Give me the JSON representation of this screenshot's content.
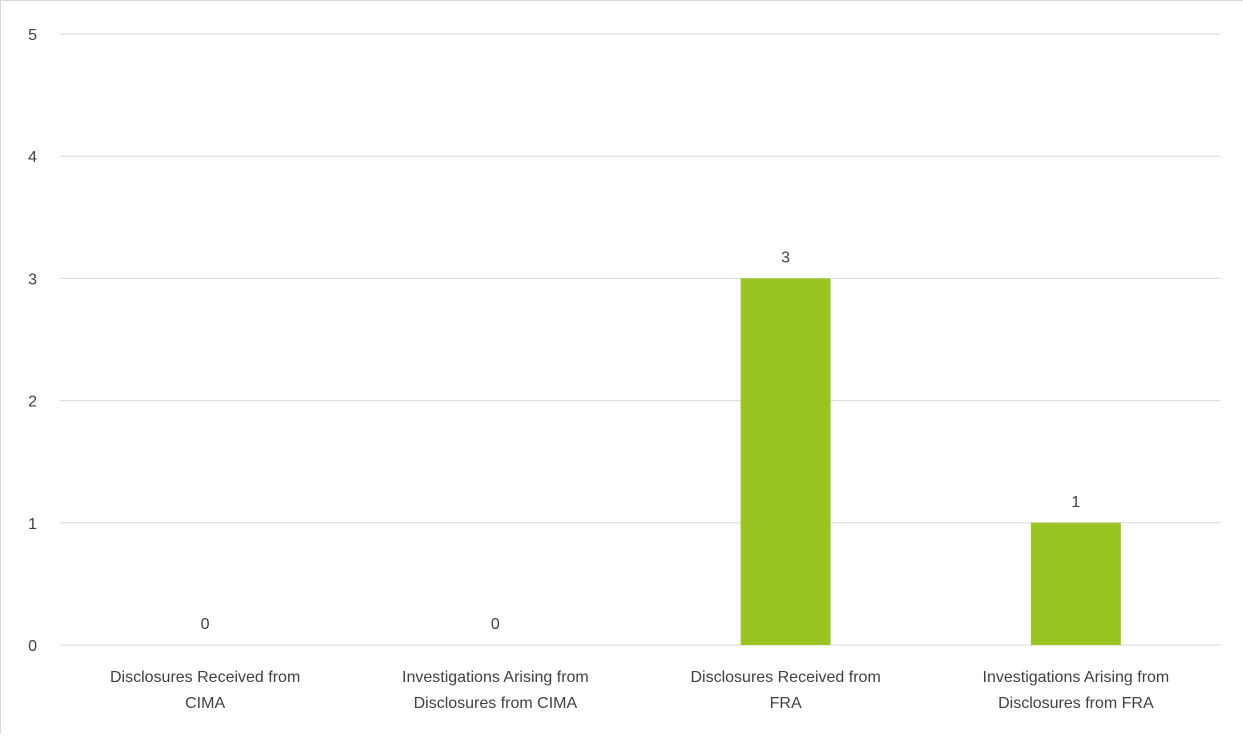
{
  "chart_data": {
    "type": "bar",
    "categories": [
      [
        "Disclosures Received from",
        "CIMA"
      ],
      [
        "Investigations Arising from",
        "Disclosures from CIMA"
      ],
      [
        "Disclosures Received from",
        "FRA"
      ],
      [
        "Investigations Arising from",
        "Disclosures from FRA"
      ]
    ],
    "values": [
      0,
      0,
      3,
      1
    ],
    "data_labels": [
      "0",
      "0",
      "3",
      "1"
    ],
    "yticks": [
      "0",
      "1",
      "2",
      "3",
      "4",
      "5"
    ],
    "ylim": [
      0,
      5
    ],
    "grid": true,
    "legend": "none",
    "colors": {
      "bar": "#9ac423",
      "grid": "#d9d9d9",
      "text": "#404040"
    }
  }
}
